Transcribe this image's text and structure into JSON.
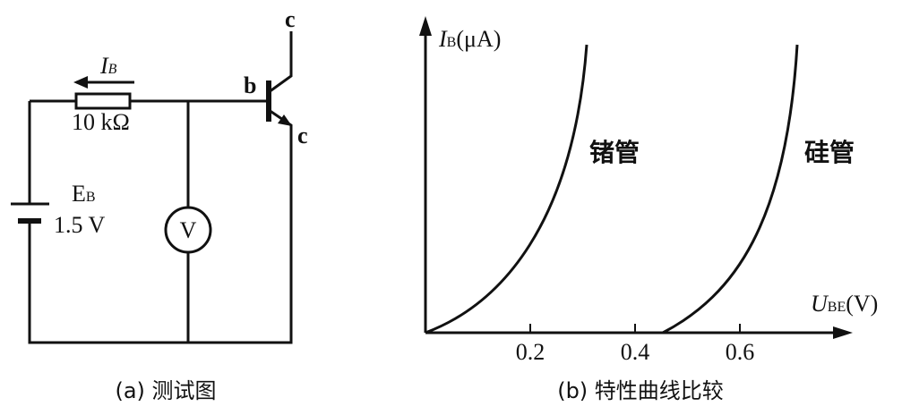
{
  "circuit": {
    "current_symbol": "I",
    "current_subscript": "B",
    "resistor": "10 kΩ",
    "source_symbol": "E",
    "source_subscript": "B",
    "source_voltage": "1.5 V",
    "meter": "V",
    "base": "b",
    "collector": "c",
    "emitter": "c",
    "caption": "(a) 测试图"
  },
  "graph": {
    "y_symbol": "I",
    "y_subscript": "B",
    "y_unit": "(μA)",
    "x_symbol": "U",
    "x_subscript": "BE",
    "x_unit": "(V)",
    "xticks": [
      0.2,
      0.4,
      0.6
    ],
    "curve_labels": [
      "锗管",
      "硅管"
    ],
    "caption": "(b) 特性曲线比较"
  }
}
